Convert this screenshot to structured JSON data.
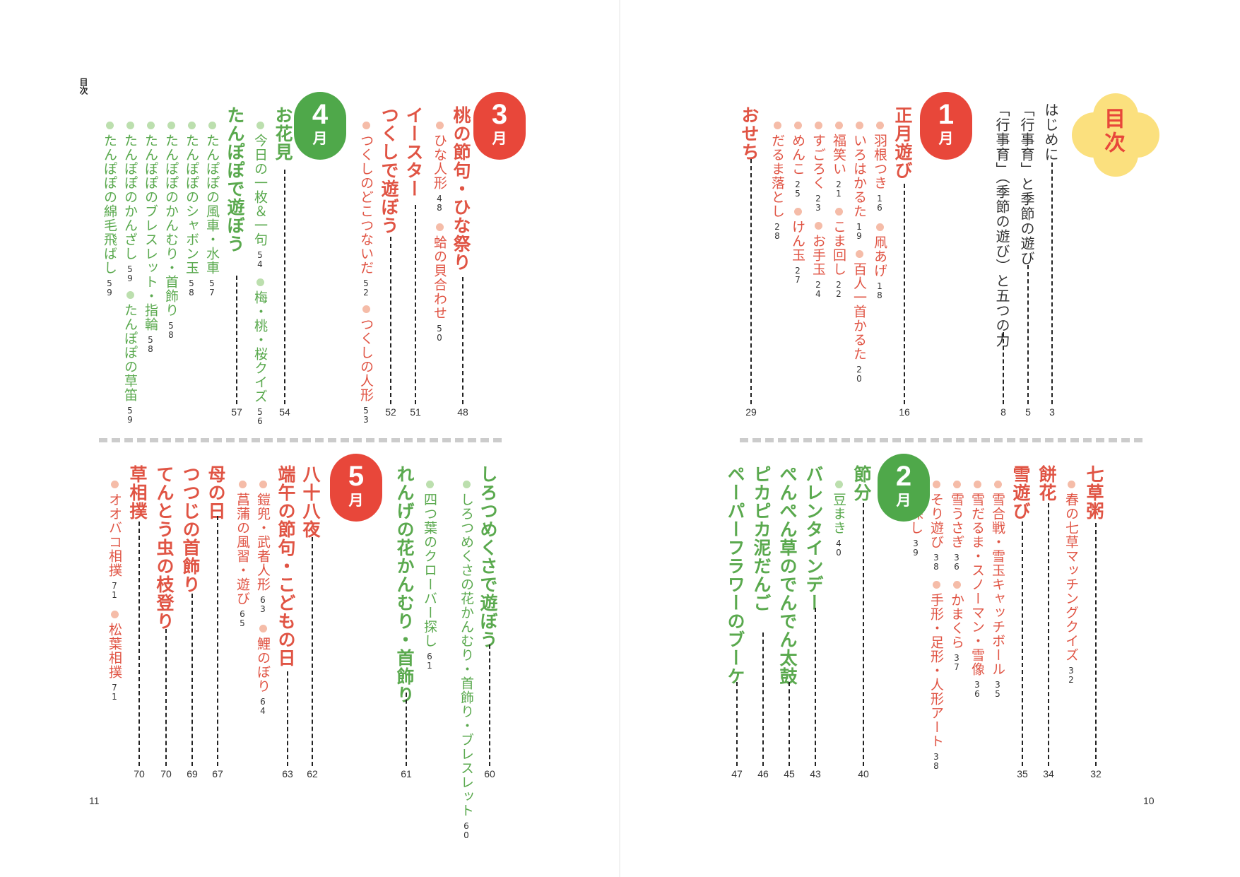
{
  "running_head": "目次",
  "folio_left": "11",
  "folio_right": "10",
  "toc_label": "目次",
  "colors": {
    "accent_red": "#e8473a",
    "accent_green": "#4fa84a",
    "text_red": "#e05444",
    "text_green": "#5aa94e",
    "bullet_red": "#f5bca8",
    "bullet_green": "#bcdfae",
    "divider": "#cccccc"
  },
  "intro": {
    "e1": {
      "title": "はじめに",
      "page": "3"
    },
    "e2": {
      "title": "「行事育」と季節の遊び",
      "page": "5"
    },
    "e3": {
      "title": "「行事育」（季節の遊び）と五つの力",
      "page": "8"
    }
  },
  "m1": {
    "num": "1",
    "unit": "月",
    "s1": {
      "title": "正月遊び",
      "page": "16",
      "i1": {
        "t": "羽根つき",
        "p": "16"
      },
      "i2": {
        "t": "凧あげ",
        "p": "18"
      },
      "i3": {
        "t": "いろはかるた",
        "p": "19"
      },
      "i4": {
        "t": "百人一首かるた",
        "p": "20"
      },
      "i5": {
        "t": "福笑い",
        "p": "21"
      },
      "i6": {
        "t": "こま回し",
        "p": "22"
      },
      "i7": {
        "t": "すごろく",
        "p": "23"
      },
      "i8": {
        "t": "お手玉",
        "p": "24"
      },
      "i9": {
        "t": "めんこ",
        "p": "25"
      },
      "i10": {
        "t": "けん玉",
        "p": "27"
      },
      "i11": {
        "t": "だるま落とし",
        "p": "28"
      }
    },
    "s2": {
      "title": "おせち",
      "page": "29"
    }
  },
  "m2": {
    "num": "2",
    "unit": "月",
    "s1": {
      "title": "七草粥",
      "page": "32",
      "i1": {
        "t": "春の七草マッチングクイズ",
        "p": "32"
      }
    },
    "s2": {
      "title": "餅花",
      "page": "34"
    },
    "s3": {
      "title": "雪遊び",
      "page": "35",
      "i1": {
        "t": "雪合戦・雪玉キャッチボール",
        "p": "35"
      },
      "i2": {
        "t": "雪だるま・スノーマン・雪像",
        "p": "36"
      },
      "i3": {
        "t": "雪うさぎ",
        "p": "36"
      },
      "i4": {
        "t": "かまくら",
        "p": "37"
      },
      "i5": {
        "t": "そり遊び",
        "p": "38"
      },
      "i6": {
        "t": "手形・足形・人形アート",
        "p": "38"
      },
      "i7": {
        "t": "宝探し",
        "p": "39"
      }
    },
    "s4": {
      "title": "節分",
      "page": "40",
      "i1": {
        "t": "豆まき",
        "p": "40"
      }
    },
    "s5": {
      "title": "バレンタインデー",
      "page": "43"
    },
    "s6": {
      "title": "ぺんぺん草のでんでん太鼓",
      "page": "45"
    },
    "s7": {
      "title": "ピカピカ泥だんご",
      "page": "46"
    },
    "s8": {
      "title": "ペーパーフラワーのブーケ",
      "page": "47"
    }
  },
  "m3": {
    "num": "3",
    "unit": "月",
    "s1": {
      "title": "桃の節句・ひな祭り",
      "page": "48",
      "i1": {
        "t": "ひな人形",
        "p": "48"
      },
      "i2": {
        "t": "蛤の貝合わせ",
        "p": "50"
      }
    },
    "s2": {
      "title": "イースター",
      "page": "51"
    },
    "s3": {
      "title": "つくしで遊ぼう",
      "page": "52",
      "i1": {
        "t": "つくしのどこつないだ",
        "p": "52"
      },
      "i2": {
        "t": "つくしの人形",
        "p": "53"
      }
    }
  },
  "m4": {
    "num": "4",
    "unit": "月",
    "s1": {
      "title": "お花見",
      "page": "54",
      "i1": {
        "t": "今日の一枚＆一句",
        "p": "54"
      },
      "i2": {
        "t": "梅・桃・桜クイズ",
        "p": "56"
      }
    },
    "s2": {
      "title": "たんぽぽで遊ぼう",
      "page": "57",
      "i1": {
        "t": "たんぽぽの風車・水車",
        "p": "57"
      },
      "i2": {
        "t": "たんぽぽのシャボン玉",
        "p": "58"
      },
      "i3": {
        "t": "たんぽぽのかんむり・首飾り",
        "p": "58"
      },
      "i4": {
        "t": "たんぽぽのブレスレット・指輪",
        "p": "58"
      },
      "i5": {
        "t": "たんぽぽのかんざし",
        "p": "59"
      },
      "i6": {
        "t": "たんぽぽの草笛",
        "p": "59"
      },
      "i7": {
        "t": "たんぽぽの綿毛飛ばし",
        "p": "59"
      }
    }
  },
  "m5": {
    "num": "5",
    "unit": "月",
    "s1": {
      "title": "しろつめくさで遊ぼう",
      "page": "60",
      "i1": {
        "t": "しろつめくさの花かんむり・首飾り・ブレスレット",
        "p": "60"
      },
      "i2": {
        "t": "四つ葉のクローバー探し",
        "p": "61"
      }
    },
    "s2": {
      "title": "れんげの花かんむり・首飾り",
      "page": "61"
    },
    "s3": {
      "title": "八十八夜",
      "page": "62"
    },
    "s4": {
      "title": "端午の節句・こどもの日",
      "page": "63",
      "i1": {
        "t": "鎧兜・武者人形",
        "p": "63"
      },
      "i2": {
        "t": "鯉のぼり",
        "p": "64"
      },
      "i3": {
        "t": "菖蒲の風習・遊び",
        "p": "65"
      }
    },
    "s5": {
      "title": "母の日",
      "page": "67"
    },
    "s6": {
      "title": "つつじの首飾り",
      "page": "69"
    },
    "s7": {
      "title": "てんとう虫の枝登り",
      "page": "70"
    },
    "s8": {
      "title": "草相撲",
      "page": "70",
      "i1": {
        "t": "オオバコ相撲",
        "p": "71"
      },
      "i2": {
        "t": "松葉相撲",
        "p": "71"
      }
    }
  }
}
